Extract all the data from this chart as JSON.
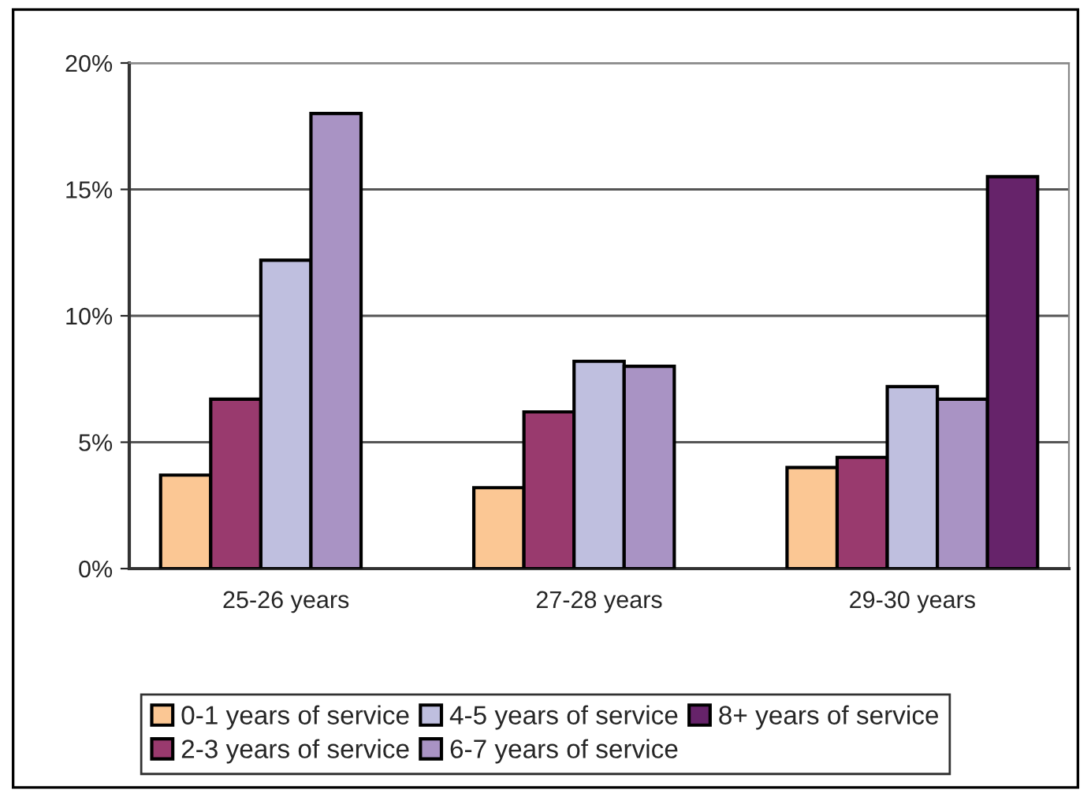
{
  "chart_data": {
    "type": "bar",
    "categories": [
      "25-26 years",
      "27-28 years",
      "29-30 years"
    ],
    "series": [
      {
        "name": "0-1 years of service",
        "color": "#fbc794",
        "values": [
          3.7,
          3.2,
          4.0
        ]
      },
      {
        "name": "2-3 years of service",
        "color": "#993a6e",
        "values": [
          6.7,
          6.2,
          4.4
        ]
      },
      {
        "name": "4-5 years of service",
        "color": "#bfbfdf",
        "values": [
          12.2,
          8.2,
          7.2
        ]
      },
      {
        "name": "6-7 years of service",
        "color": "#a993c4",
        "values": [
          18.0,
          8.0,
          6.7
        ]
      },
      {
        "name": "8+ years of service",
        "color": "#66236a",
        "values": [
          null,
          null,
          15.5
        ]
      }
    ],
    "ylim": [
      0,
      20
    ],
    "yticks": [
      {
        "value": 0,
        "label": "0%"
      },
      {
        "value": 5,
        "label": "5%"
      },
      {
        "value": 10,
        "label": "10%"
      },
      {
        "value": 15,
        "label": "15%"
      },
      {
        "value": 20,
        "label": "20%"
      }
    ],
    "grid": "y",
    "legend": "bottom"
  }
}
